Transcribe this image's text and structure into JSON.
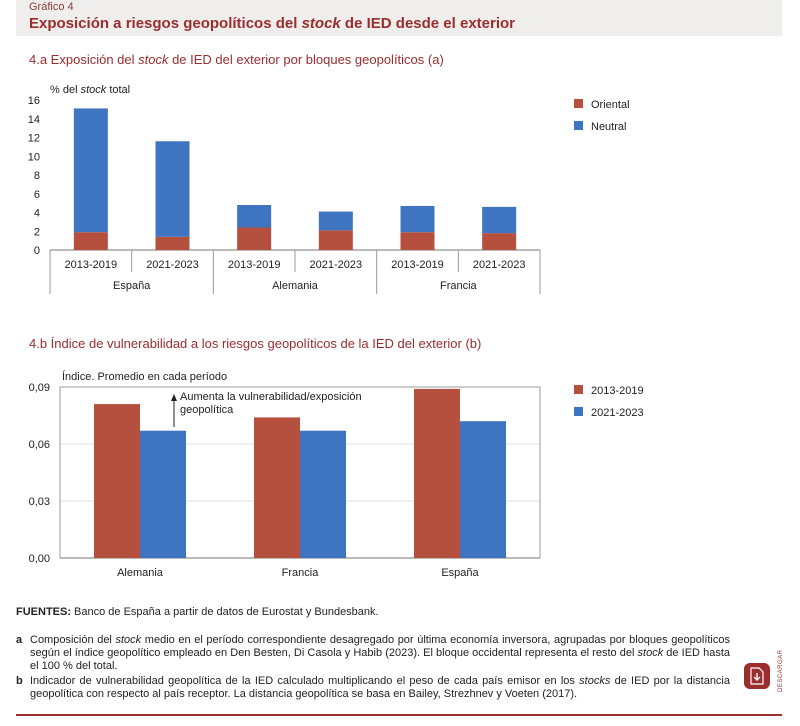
{
  "header": {
    "figure_label": "Gráfico 4",
    "title_pre": "Exposición a riesgos geopolíticos del ",
    "title_em": "stock",
    "title_post": " de IED desde el exterior"
  },
  "colors": {
    "brand": "#9b2d2d",
    "oriental": "#b5503f",
    "neutral": "#3f74c0"
  },
  "chart_data": [
    {
      "id": "4.a",
      "type": "bar",
      "stacked": true,
      "title_pre": "4.a  Exposición del ",
      "title_em": "stock",
      "title_post": " de IED del exterior por bloques geopolíticos (a)",
      "ylabel_pre": "% del ",
      "ylabel_em": "stock",
      "ylabel_post": " total",
      "ylim": [
        0,
        16
      ],
      "yticks": [
        "0",
        "2",
        "4",
        "6",
        "8",
        "10",
        "12",
        "14",
        "16"
      ],
      "categories": [
        "2013-2019",
        "2021-2023",
        "2013-2019",
        "2021-2023",
        "2013-2019",
        "2021-2023"
      ],
      "groups": [
        "España",
        "Alemania",
        "Francia"
      ],
      "series": [
        {
          "name": "Oriental",
          "values": [
            1.9,
            1.4,
            2.4,
            2.1,
            1.9,
            1.8
          ]
        },
        {
          "name": "Neutral",
          "values": [
            13.2,
            10.2,
            2.4,
            2.0,
            2.8,
            2.8
          ]
        }
      ],
      "legend": "right"
    },
    {
      "id": "4.b",
      "type": "bar",
      "title": "4.b  Índice de vulnerabilidad a los riesgos geopolíticos de la IED del exterior (b)",
      "ylabel": "Índice. Promedio en cada período",
      "ylim": [
        0,
        0.09
      ],
      "yticks": [
        "0,00",
        "0,03",
        "0,06",
        "0,09"
      ],
      "categories": [
        "Alemania",
        "Francia",
        "España"
      ],
      "series": [
        {
          "name": "2013-2019",
          "values": [
            0.081,
            0.074,
            0.089
          ]
        },
        {
          "name": "2021-2023",
          "values": [
            0.067,
            0.067,
            0.072
          ]
        }
      ],
      "annotation_line1": "Aumenta la vulnerabilidad/exposición",
      "annotation_line2": "geopolítica",
      "legend": "right"
    }
  ],
  "sources": {
    "label": "FUENTES:",
    "text": " Banco de España a partir de datos de Eurostat y Bundesbank."
  },
  "notes": {
    "a": {
      "letter": "a",
      "t1": "Composición del ",
      "e1": "stock",
      "t2": " medio en el período correspondiente desagregado por última economía inversora, agrupadas por bloques geopolíticos según el índice geopolítico empleado en Den Besten, Di Casola y Habib (2023). El bloque occidental representa el resto del ",
      "e2": "stock",
      "t3": " de IED hasta el 100 % del total."
    },
    "b": {
      "letter": "b",
      "t1": "Indicador de vulnerabilidad geopolítica de la IED calculado multiplicando el peso de cada país emisor en los ",
      "e1": "stocks",
      "t2": " de IED por la distancia geopolítica con respecto al país receptor. La distancia geopolítica se basa en Bailey, Strezhnev y Voeten (2017)."
    }
  },
  "download": {
    "label": "DESCARGAR"
  }
}
